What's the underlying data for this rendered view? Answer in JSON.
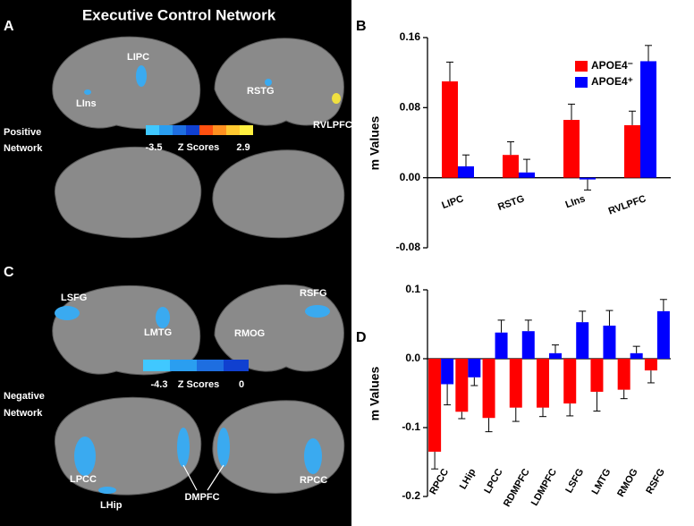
{
  "brain_panels": {
    "title": "Executive Control Network",
    "panel_a": {
      "letter": "A",
      "network": [
        "Positive",
        "Network"
      ],
      "regions": [
        "LIPC",
        "LIns",
        "RSTG",
        "RVLPFC"
      ],
      "colorbar": {
        "min": "-3.5",
        "label": "Z Scores",
        "max": "2.9"
      }
    },
    "panel_c": {
      "letter": "C",
      "network": [
        "Negative",
        "Network"
      ],
      "regions": [
        "LSFG",
        "RSFG",
        "LMTG",
        "RMOG",
        "LPCC",
        "DMPFC",
        "RPCC",
        "LHip"
      ],
      "colorbar": {
        "min": "-4.3",
        "label": "Z Scores",
        "max": "0"
      }
    }
  },
  "chart_data": [
    {
      "type": "bar",
      "letter": "B",
      "ylabel": "m Values",
      "categories": [
        "LIPC",
        "RSTG",
        "LIns",
        "RVLPFC"
      ],
      "series": [
        {
          "name": "APOE4⁻",
          "color": "#ff0000",
          "values": [
            0.11,
            0.026,
            0.066,
            0.06
          ],
          "errors": [
            0.022,
            0.015,
            0.018,
            0.016
          ]
        },
        {
          "name": "APOE4⁺",
          "color": "#0000ff",
          "values": [
            0.013,
            0.006,
            -0.002,
            0.133
          ],
          "errors": [
            0.013,
            0.015,
            0.012,
            0.018
          ]
        }
      ],
      "ylim": [
        -0.08,
        0.16
      ],
      "yticks": [
        0.16,
        0.08,
        {
          "value": 0,
          "label": "0.00"
        },
        -0.08
      ],
      "legend": "upper right"
    },
    {
      "type": "bar",
      "letter": "D",
      "ylabel": "m Values",
      "categories": [
        "RPCC",
        "LHip",
        "LPCC",
        "RDMPFC",
        "LDMPFC",
        "LSFG",
        "LMTG",
        "RMOG",
        "RSFG"
      ],
      "series": [
        {
          "color": "#ff0000",
          "values": [
            -0.135,
            -0.077,
            -0.086,
            -0.071,
            -0.071,
            -0.065,
            -0.048,
            -0.045,
            -0.017
          ],
          "errors": [
            0.025,
            0.01,
            0.02,
            0.02,
            0.013,
            0.018,
            0.028,
            0.013,
            0.018
          ]
        },
        {
          "color": "#0000ff",
          "values": [
            -0.037,
            -0.027,
            0.038,
            0.04,
            0.008,
            0.053,
            0.048,
            0.008,
            0.069
          ],
          "errors": [
            0.03,
            0.012,
            0.018,
            0.016,
            0.012,
            0.016,
            0.022,
            0.01,
            0.017
          ]
        }
      ],
      "ylim": [
        -0.2,
        0.1
      ],
      "yticks": [
        0.1,
        {
          "value": 0,
          "label": "0.0"
        },
        -0.1,
        -0.2
      ]
    }
  ]
}
